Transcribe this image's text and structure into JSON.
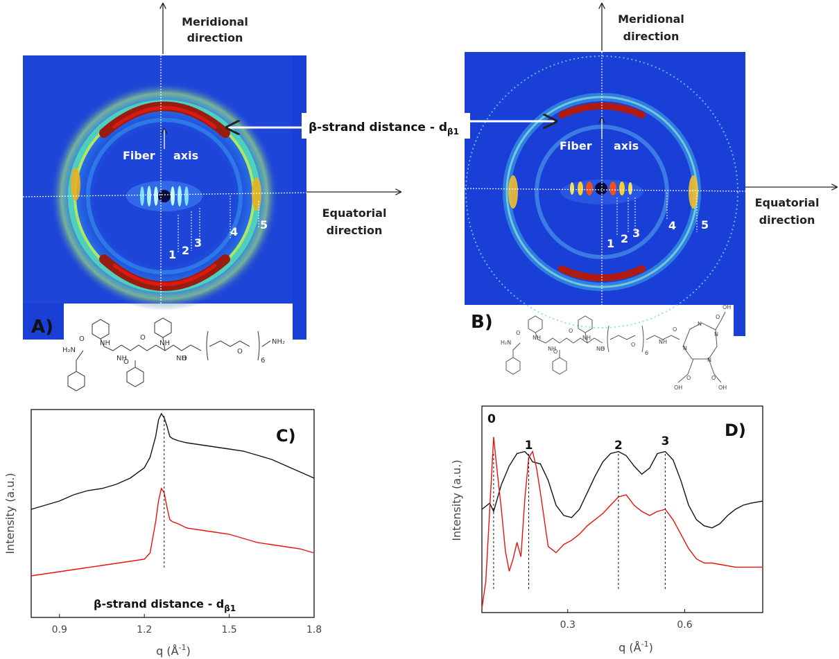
{
  "figure": {
    "panel_a": {
      "label": "A)",
      "axis_labels": {
        "meridional": [
          "Meridional",
          "direction"
        ],
        "equatorial": [
          "Equatorial",
          "direction"
        ],
        "fiber": "Fiber",
        "axis": "axis"
      },
      "ring_labels": [
        "1",
        "2",
        "3",
        "4",
        "5"
      ],
      "molecule_labels": [
        "H₂N",
        "O",
        "NH",
        "NH",
        "O",
        "O",
        "NH",
        "NH",
        "O",
        "O",
        "6",
        "NH₂"
      ]
    },
    "panel_b": {
      "label": "B)",
      "axis_labels": {
        "meridional": [
          "Meridional",
          "direction"
        ],
        "equatorial": [
          "Equatorial",
          "direction"
        ],
        "fiber": "Fiber",
        "axis": "axis"
      },
      "ring_labels": [
        "1",
        "2",
        "3",
        "4",
        "5"
      ],
      "molecule_labels": [
        "H₂N",
        "O",
        "NH",
        "NH",
        "O",
        "O",
        "NH",
        "NH",
        "O",
        "O",
        "6",
        "NH",
        "O",
        "N",
        "N",
        "N",
        "N",
        "OH",
        "O",
        "OH",
        "O",
        "OH",
        "O"
      ]
    },
    "beta_strand_callout": {
      "text": "β-strand distance - d",
      "subscript": "β1"
    },
    "colors": {
      "trace_black": "#111111",
      "trace_red": "#e8100c",
      "detector_bg": "#1a3fd6"
    }
  },
  "chart_data": [
    {
      "type": "line",
      "panel_label": "C)",
      "xlabel": "q (Å",
      "xlabel_sup": "-1",
      "ylabel": "Intensity (a.u.)",
      "xlim": [
        0.8,
        1.8
      ],
      "ylim": [
        0,
        1
      ],
      "xticks": [
        0.9,
        1.2,
        1.5,
        1.8
      ],
      "xtick_labels": [
        "0.9",
        "1.2",
        "1.5",
        "1.8"
      ],
      "series": [
        {
          "color": "#111111",
          "x": [
            0.8,
            0.85,
            0.9,
            0.95,
            1.0,
            1.05,
            1.1,
            1.15,
            1.2,
            1.22,
            1.24,
            1.25,
            1.26,
            1.27,
            1.28,
            1.29,
            1.3,
            1.32,
            1.35,
            1.4,
            1.45,
            1.5,
            1.55,
            1.6,
            1.65,
            1.7,
            1.75,
            1.8
          ],
          "y": [
            0.52,
            0.54,
            0.56,
            0.59,
            0.61,
            0.62,
            0.64,
            0.67,
            0.72,
            0.77,
            0.87,
            0.95,
            0.98,
            0.96,
            0.92,
            0.87,
            0.86,
            0.85,
            0.84,
            0.83,
            0.82,
            0.81,
            0.8,
            0.78,
            0.76,
            0.73,
            0.7,
            0.67
          ]
        },
        {
          "color": "#e8100c",
          "x": [
            0.8,
            0.85,
            0.9,
            0.95,
            1.0,
            1.05,
            1.1,
            1.15,
            1.2,
            1.22,
            1.24,
            1.25,
            1.26,
            1.27,
            1.28,
            1.29,
            1.3,
            1.32,
            1.35,
            1.4,
            1.45,
            1.5,
            1.55,
            1.6,
            1.65,
            1.7,
            1.75,
            1.8
          ],
          "y": [
            0.2,
            0.21,
            0.22,
            0.23,
            0.24,
            0.25,
            0.26,
            0.27,
            0.28,
            0.31,
            0.46,
            0.56,
            0.62,
            0.6,
            0.53,
            0.47,
            0.46,
            0.45,
            0.43,
            0.42,
            0.41,
            0.4,
            0.38,
            0.36,
            0.35,
            0.34,
            0.33,
            0.31
          ]
        }
      ],
      "dashed_markers": [
        1.27
      ],
      "annotation": {
        "text": "β-strand distance - d",
        "subscript": "β1"
      }
    },
    {
      "type": "line",
      "panel_label": "D)",
      "xlabel": "q (Å",
      "xlabel_sup": "-1",
      "ylabel": "Intensity (a.u.)",
      "xlim": [
        0.08,
        0.8
      ],
      "ylim": [
        0,
        1
      ],
      "xticks": [
        0.3,
        0.6
      ],
      "xtick_labels": [
        "0.3",
        "0.6"
      ],
      "series": [
        {
          "color": "#111111",
          "x": [
            0.08,
            0.1,
            0.11,
            0.13,
            0.15,
            0.17,
            0.19,
            0.2,
            0.21,
            0.23,
            0.25,
            0.27,
            0.29,
            0.31,
            0.33,
            0.35,
            0.37,
            0.39,
            0.41,
            0.43,
            0.45,
            0.47,
            0.49,
            0.51,
            0.53,
            0.55,
            0.57,
            0.59,
            0.61,
            0.63,
            0.65,
            0.67,
            0.69,
            0.71,
            0.73,
            0.75,
            0.77,
            0.8
          ],
          "y": [
            0.5,
            0.53,
            0.49,
            0.62,
            0.71,
            0.77,
            0.78,
            0.76,
            0.73,
            0.72,
            0.64,
            0.52,
            0.47,
            0.46,
            0.5,
            0.58,
            0.66,
            0.73,
            0.77,
            0.78,
            0.76,
            0.71,
            0.67,
            0.7,
            0.77,
            0.78,
            0.74,
            0.64,
            0.52,
            0.45,
            0.42,
            0.41,
            0.43,
            0.47,
            0.5,
            0.52,
            0.53,
            0.54
          ]
        },
        {
          "color": "#e8100c",
          "x": [
            0.08,
            0.09,
            0.1,
            0.11,
            0.12,
            0.13,
            0.14,
            0.15,
            0.16,
            0.17,
            0.18,
            0.19,
            0.2,
            0.21,
            0.22,
            0.23,
            0.24,
            0.25,
            0.27,
            0.29,
            0.31,
            0.33,
            0.35,
            0.37,
            0.39,
            0.41,
            0.43,
            0.45,
            0.47,
            0.49,
            0.51,
            0.53,
            0.55,
            0.57,
            0.59,
            0.61,
            0.63,
            0.65,
            0.67,
            0.7,
            0.73,
            0.76,
            0.8
          ],
          "y": [
            0.02,
            0.15,
            0.5,
            0.85,
            0.67,
            0.5,
            0.3,
            0.2,
            0.26,
            0.34,
            0.27,
            0.55,
            0.75,
            0.78,
            0.7,
            0.58,
            0.45,
            0.32,
            0.29,
            0.33,
            0.35,
            0.38,
            0.42,
            0.45,
            0.48,
            0.52,
            0.56,
            0.57,
            0.52,
            0.49,
            0.47,
            0.49,
            0.5,
            0.45,
            0.38,
            0.31,
            0.26,
            0.24,
            0.24,
            0.23,
            0.22,
            0.22,
            0.22
          ]
        }
      ],
      "dashed_markers": [
        0.11,
        0.2,
        0.43,
        0.55
      ],
      "peak_labels": [
        "0",
        "1",
        "2",
        "3"
      ]
    }
  ]
}
